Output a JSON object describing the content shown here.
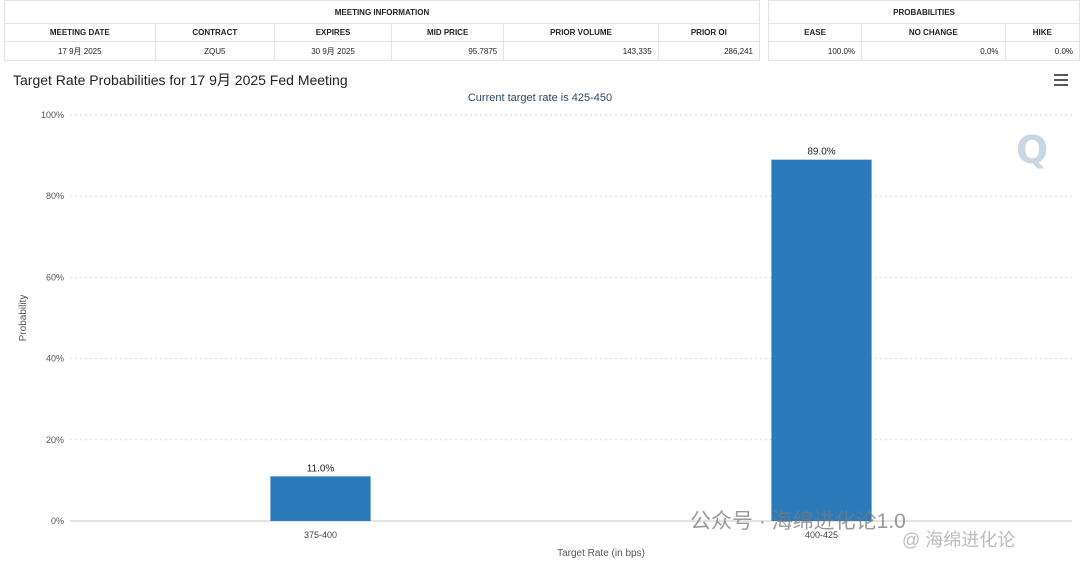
{
  "meeting_info": {
    "title": "MEETING INFORMATION",
    "headers": [
      "MEETING DATE",
      "CONTRACT",
      "EXPIRES",
      "MID PRICE",
      "PRIOR VOLUME",
      "PRIOR OI"
    ],
    "values": [
      "17 9月 2025",
      "ZQU5",
      "30 9月 2025",
      "95.7875",
      "143,335",
      "286,241"
    ]
  },
  "probabilities": {
    "title": "PROBABILITIES",
    "headers": [
      "EASE",
      "NO CHANGE",
      "HIKE"
    ],
    "values": [
      "100.0%",
      "0.0%",
      "0.0%"
    ]
  },
  "chart_data": {
    "type": "bar",
    "title": "Target Rate Probabilities for 17 9月 2025 Fed Meeting",
    "subtitle": "Current target rate is 425-450",
    "xlabel": "Target Rate (in bps)",
    "ylabel": "Probability",
    "categories": [
      "375-400",
      "400-425"
    ],
    "values": [
      11.0,
      89.0
    ],
    "data_labels": [
      "11.0%",
      "89.0%"
    ],
    "ylim": [
      0,
      100
    ],
    "yticks": [
      "0%",
      "20%",
      "40%",
      "60%",
      "80%",
      "100%"
    ],
    "grid": true,
    "bar_color": "#2b7bba"
  },
  "watermark": {
    "logo_letter": "Q",
    "wechat": "公众号 · 海绵进化论1.0",
    "handle": "@ 海绵进化论"
  }
}
